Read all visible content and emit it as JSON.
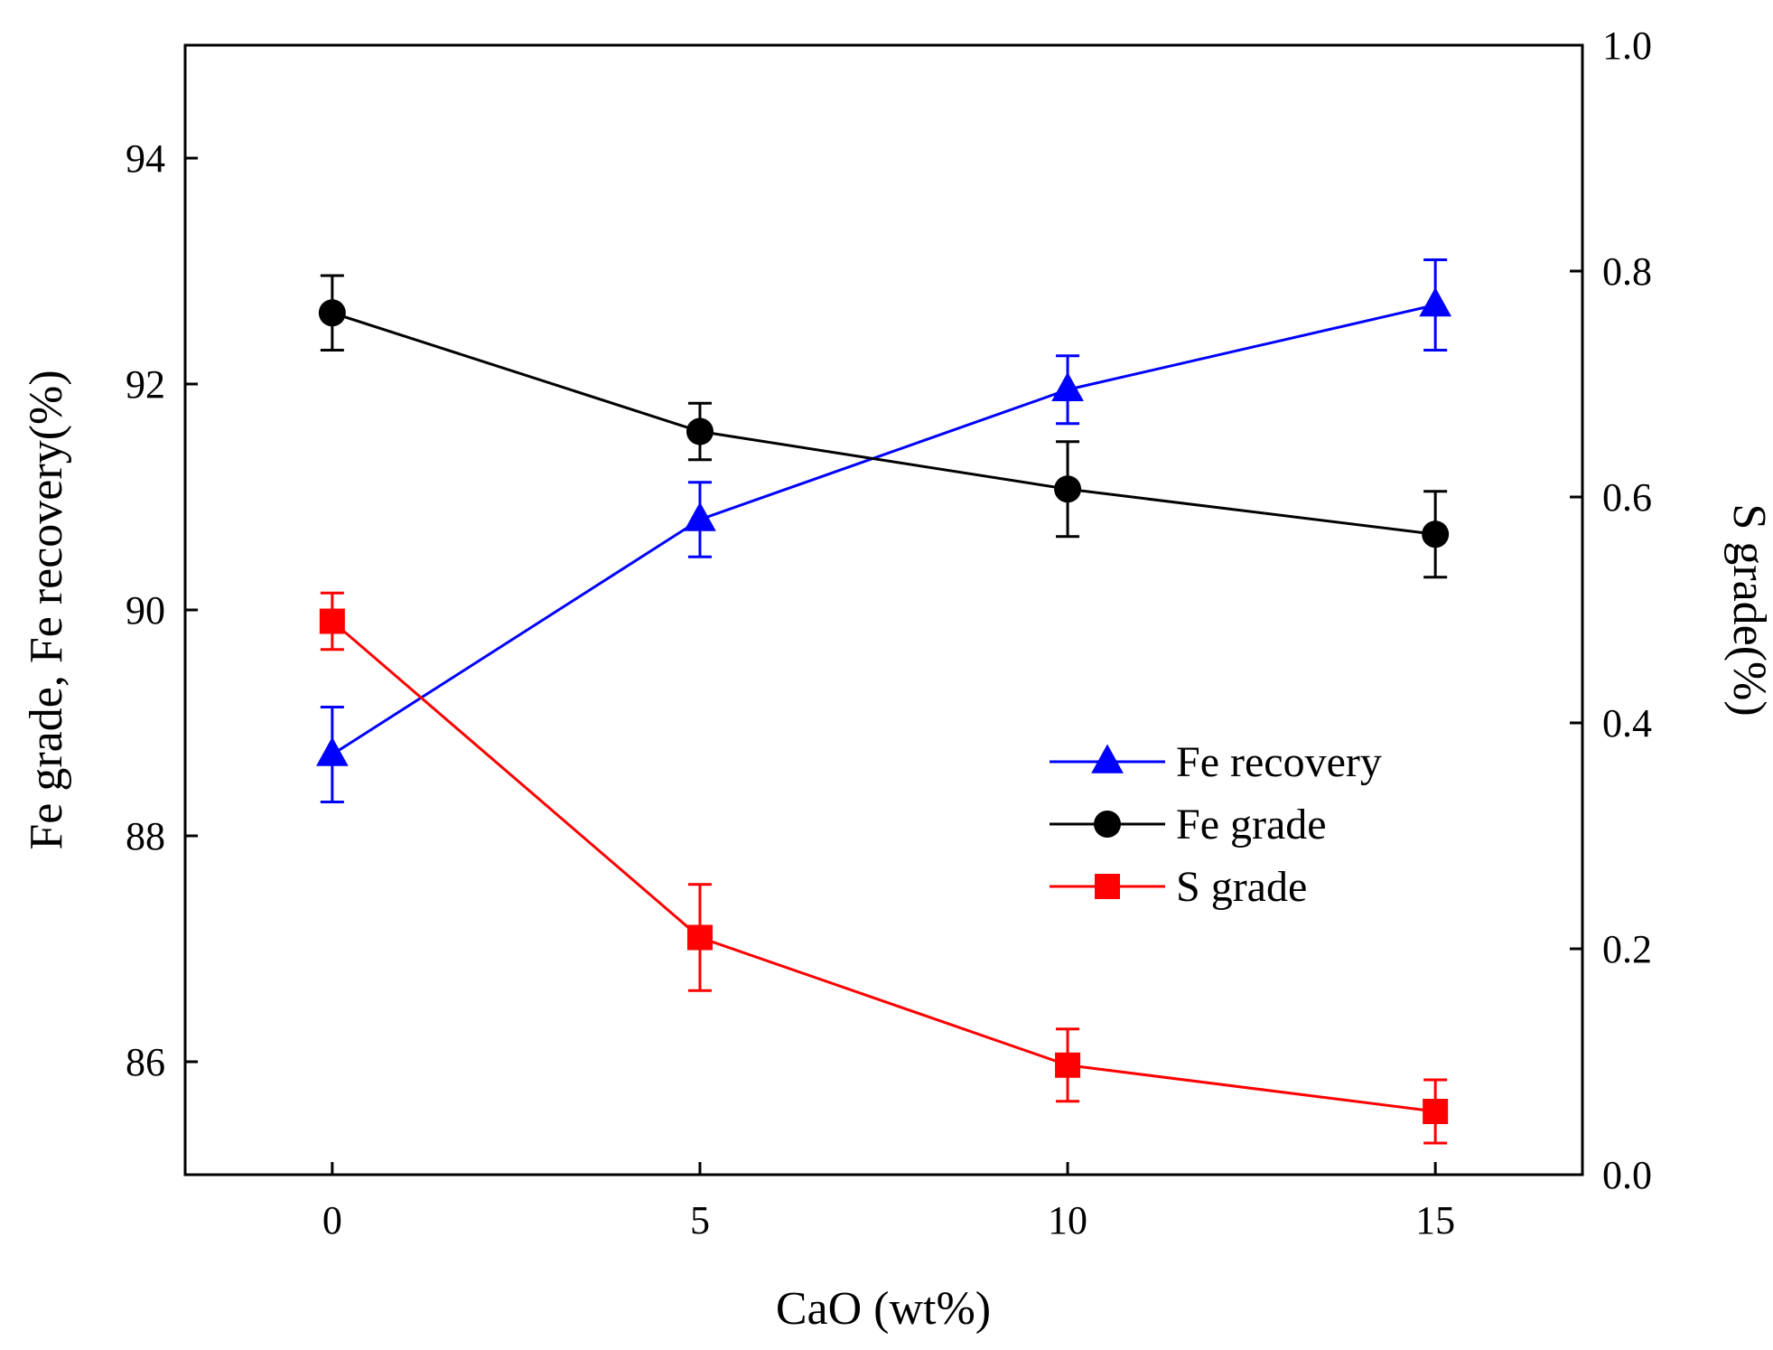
{
  "chart_data": {
    "type": "line",
    "xlabel": "CaO (wt%)",
    "ylabel_left": "Fe grade,  Fe recovery(%)",
    "ylabel_right": "S grade(%)",
    "x": [
      0,
      5,
      10,
      15
    ],
    "xlim": [
      -2,
      17
    ],
    "ylim_left": [
      85,
      95
    ],
    "ylim_right": [
      0.0,
      1.0
    ],
    "xticks": [
      "0",
      "5",
      "10",
      "15"
    ],
    "yticks_left": [
      "86",
      "88",
      "90",
      "92",
      "94"
    ],
    "yticks_right": [
      "0.0",
      "0.2",
      "0.4",
      "0.6",
      "0.8",
      "1.0"
    ],
    "legend_position": "center-right",
    "grid": false,
    "series": [
      {
        "name": "Fe recovery",
        "axis": "left",
        "color": "#0000ff",
        "marker": "triangle",
        "values": [
          88.72,
          90.8,
          91.95,
          92.7
        ],
        "errors": [
          0.42,
          0.33,
          0.3,
          0.4
        ]
      },
      {
        "name": "Fe grade",
        "axis": "left",
        "color": "#000000",
        "marker": "circle",
        "values": [
          92.63,
          91.58,
          91.07,
          90.67
        ],
        "errors": [
          0.33,
          0.25,
          0.42,
          0.38
        ]
      },
      {
        "name": "S grade",
        "axis": "right",
        "color": "#ff0000",
        "marker": "square",
        "values": [
          0.49,
          0.21,
          0.097,
          0.056
        ],
        "errors": [
          0.025,
          0.047,
          0.032,
          0.028
        ]
      }
    ]
  }
}
